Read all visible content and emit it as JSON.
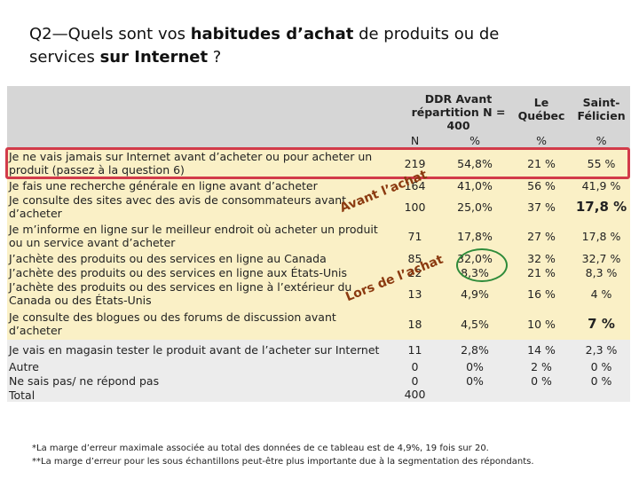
{
  "title": {
    "parts": [
      "Q2—Quels sont vos ",
      "habitudes d’achat",
      " de produits ou de ",
      "services ",
      "sur Internet",
      " ?"
    ]
  },
  "table": {
    "header": [
      "DDR Avant répartition N = 400",
      "Le Québec",
      "Saint-Félicien"
    ],
    "subheader": [
      "N",
      "%",
      "%",
      "%"
    ],
    "rows": [
      [
        "Je ne vais jamais sur Internet avant d’acheter ou pour acheter un produit (passez à la question 6)",
        "219",
        "54,8%",
        "21 %",
        "55 %"
      ],
      [
        "Je fais une recherche générale en ligne avant d’acheter",
        "164",
        "41,0%",
        "56 %",
        "41,9 %"
      ],
      [
        "Je consulte des sites avec des avis de consommateurs avant d’acheter",
        "100",
        "25,0%",
        "37 %",
        "17,8 %"
      ],
      [
        "Je m’informe en ligne sur le meilleur endroit où acheter un produit ou un service avant d’acheter",
        "71",
        "17,8%",
        "27 %",
        "17,8 %"
      ],
      [
        "J’achète des produits ou des services en ligne au Canada",
        "85",
        "32,0%",
        "32 %",
        "32,7 %"
      ],
      [
        "J’achète des produits ou des services en ligne aux États-Unis",
        "22",
        "8,3%",
        "21 %",
        "8,3 %"
      ],
      [
        "J’achète des produits ou des services en ligne à l’extérieur du Canada ou des États-Unis",
        "13",
        "4,9%",
        "16 %",
        "4 %"
      ],
      [
        "Je consulte des blogues ou des forums de discussion avant d’acheter",
        "18",
        "4,5%",
        "10 %",
        "7 %"
      ],
      [
        "Je vais en magasin tester le produit avant de l’acheter sur Internet",
        "11",
        "2,8%",
        "14 %",
        "2,3 %"
      ],
      [
        "Autre",
        "0",
        "0%",
        "2 %",
        "0 %"
      ],
      [
        "Ne sais pas/ ne répond pas",
        "0",
        "0%",
        "0 %",
        "0 %"
      ],
      [
        "Total",
        "400"
      ]
    ]
  },
  "annotations": [
    "Avant l’achat",
    "Lors de l’achat"
  ],
  "footnotes": [
    "*La marge d’erreur maximale associée au total des données de ce tableau est de 4,9%, 19 fois sur 20.",
    "**La marge d’erreur pour les sous échantillons peut-être plus importante due à la segmentation des répondants."
  ]
}
